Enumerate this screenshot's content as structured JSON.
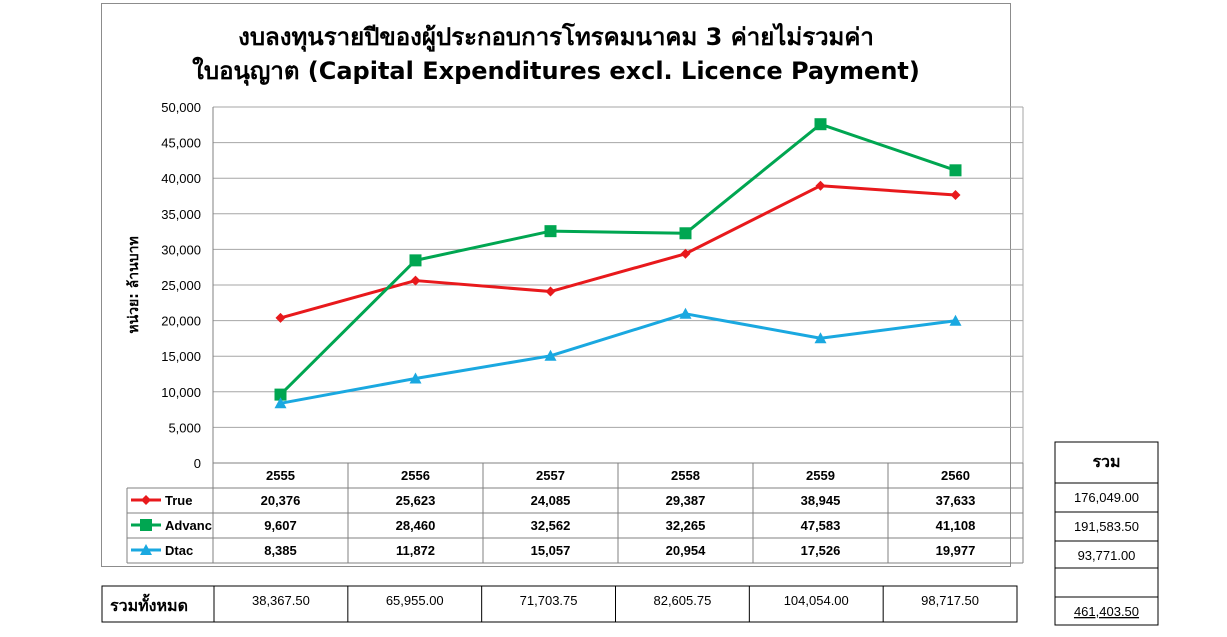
{
  "chart_data": {
    "type": "line",
    "title_line1": "งบลงทุนรายปีของผู้ประกอบการโทรคมนาคม 3 ค่ายไม่รวมค่า",
    "title_line2": "ใบอนุญาต (Capital Expenditures excl. Licence Payment)",
    "ylabel": "หน่วย: ล้านบาท",
    "ylim": [
      0,
      50000
    ],
    "y_ticks": [
      "0",
      "5,000",
      "10,000",
      "15,000",
      "20,000",
      "25,000",
      "30,000",
      "35,000",
      "40,000",
      "45,000",
      "50,000"
    ],
    "grid": true,
    "legend": "data-table",
    "categories": [
      "2555",
      "2556",
      "2557",
      "2558",
      "2559",
      "2560"
    ],
    "series": [
      {
        "name": "True",
        "color": "#e8191c",
        "marker": "diamond",
        "values": [
          20376,
          25623,
          24085,
          29387,
          38945,
          37633
        ],
        "labels": [
          "20,376",
          "25,623",
          "24,085",
          "29,387",
          "38,945",
          "37,633"
        ]
      },
      {
        "name": "Advanc",
        "color": "#00a651",
        "marker": "square",
        "values": [
          9607,
          28460,
          32562,
          32265,
          47583,
          41108
        ],
        "labels": [
          "9,607",
          "28,460",
          "32,562",
          "32,265",
          "47,583",
          "41,108"
        ]
      },
      {
        "name": "Dtac",
        "color": "#1aa8e0",
        "marker": "triangle",
        "values": [
          8385,
          11872,
          15057,
          20954,
          17526,
          19977
        ],
        "labels": [
          "8,385",
          "11,872",
          "15,057",
          "20,954",
          "17,526",
          "19,977"
        ]
      }
    ]
  },
  "totals": {
    "row_label": "รวมทั้งหมด",
    "row_values": [
      "38,367.50",
      "65,955.00",
      "71,703.75",
      "82,605.75",
      "104,054.00",
      "98,717.50"
    ],
    "col_header": "รวม",
    "col_values": [
      "176,049.00",
      "191,583.50",
      "93,771.00",
      ""
    ],
    "grand_total": "461,403.50"
  }
}
